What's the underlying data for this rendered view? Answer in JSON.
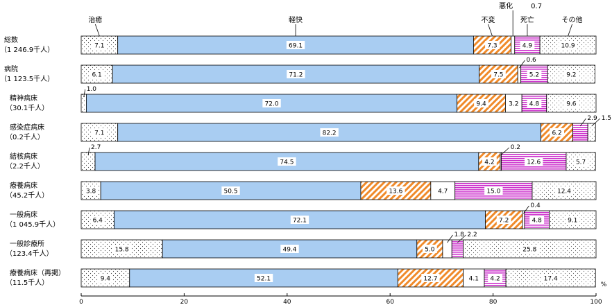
{
  "chart_data": {
    "type": "bar",
    "orientation": "horizontal-stacked-100",
    "unit": "%",
    "xlim": [
      0,
      100
    ],
    "xticks": [
      0,
      20,
      40,
      60,
      80,
      100
    ],
    "series_labels": [
      "治癒",
      "軽快",
      "不変",
      "悪化",
      "死亡",
      "その他"
    ],
    "series_colors": [
      "#ffffff",
      "#a9cdf2",
      "#f08a2a",
      "#ffffff",
      "#cc33cc",
      "#ffffff"
    ],
    "categories": [
      {
        "label": [
          "総数",
          "（1 246.9千人）"
        ],
        "values": [
          7.1,
          69.1,
          7.3,
          0.7,
          4.9,
          10.9
        ],
        "labels": [
          "7.1",
          "69.1",
          "7.3",
          "",
          "4.9",
          "10.9"
        ],
        "callout": null
      },
      {
        "label": [
          "病院",
          "（1 123.5千人）"
        ],
        "values": [
          6.1,
          71.2,
          7.5,
          0.6,
          5.2,
          9.2
        ],
        "labels": [
          "6.1",
          "71.2",
          "7.5",
          "",
          "5.2",
          "9.2"
        ],
        "callout": {
          "index": 3,
          "text": "0.6"
        }
      },
      {
        "label": [
          "精神病床",
          "（30.1千人）"
        ],
        "values": [
          1.0,
          72.0,
          9.4,
          3.2,
          4.8,
          9.6
        ],
        "labels": [
          "",
          "72.0",
          "9.4",
          "3.2",
          "4.8",
          "9.6"
        ],
        "callout": {
          "index": 0,
          "text": "1.0"
        }
      },
      {
        "label": [
          "感染症病床",
          "（0.2千人）"
        ],
        "values": [
          7.1,
          82.2,
          6.2,
          0,
          2.9,
          1.5
        ],
        "labels": [
          "7.1",
          "82.2",
          "6.2",
          "",
          "",
          ""
        ],
        "callout": [
          {
            "index": 4,
            "text": "2.9"
          },
          {
            "index": 5,
            "text": "1.5"
          }
        ]
      },
      {
        "label": [
          "結核病床",
          "（2.2千人）"
        ],
        "values": [
          2.7,
          74.5,
          4.2,
          0.2,
          12.6,
          5.7
        ],
        "labels": [
          "",
          "74.5",
          "4.2",
          "",
          "12.6",
          "5.7"
        ],
        "callout": [
          {
            "index": 0,
            "text": "2.7"
          },
          {
            "index": 3,
            "text": "0.2"
          }
        ]
      },
      {
        "label": [
          "療養病床",
          "（45.2千人）"
        ],
        "values": [
          3.8,
          50.5,
          13.6,
          4.7,
          15.0,
          12.4
        ],
        "labels": [
          "3.8",
          "50.5",
          "13.6",
          "4.7",
          "15.0",
          "12.4"
        ],
        "callout": null
      },
      {
        "label": [
          "一般病床",
          "（1 045.9千人）"
        ],
        "values": [
          6.4,
          72.1,
          7.2,
          0.4,
          4.8,
          9.1
        ],
        "labels": [
          "6.4",
          "72.1",
          "7.2",
          "",
          "4.8",
          "9.1"
        ],
        "callout": {
          "index": 3,
          "text": "0.4"
        }
      },
      {
        "label": [
          "一般診療所",
          "（123.4千人）"
        ],
        "values": [
          15.8,
          49.4,
          5.0,
          1.8,
          2.2,
          25.8
        ],
        "labels": [
          "15.8",
          "49.4",
          "5.0",
          "",
          "",
          "25.8"
        ],
        "callout": [
          {
            "index": 3,
            "text": "1.8"
          },
          {
            "index": 4,
            "text": "2.2"
          }
        ]
      },
      {
        "label": [
          "療養病床（再掲）",
          "（11.5千人）"
        ],
        "values": [
          9.4,
          52.1,
          12.7,
          4.1,
          4.2,
          17.4
        ],
        "labels": [
          "9.4",
          "52.1",
          "12.7",
          "4.1",
          "4.2",
          "17.4"
        ],
        "callout": null
      }
    ],
    "top_annotation": "0.7"
  }
}
